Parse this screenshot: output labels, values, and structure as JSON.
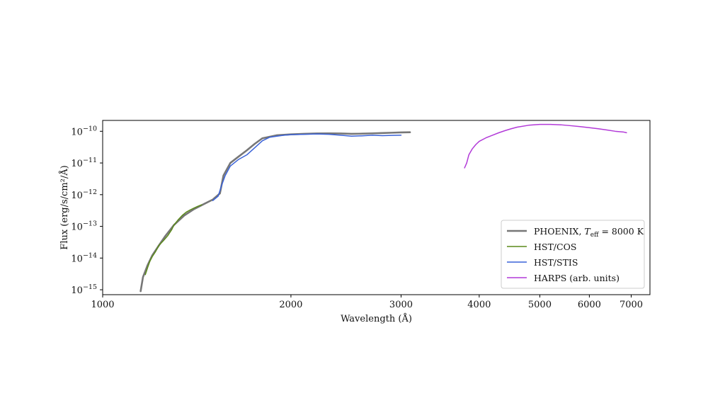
{
  "chart_data": {
    "type": "line",
    "title": "",
    "xlabel": "Wavelength (Å)",
    "ylabel": "Flux (erg/s/cm²/Å)",
    "xscale": "log",
    "yscale": "log",
    "xlim": [
      1000,
      7500
    ],
    "ylim": [
      7e-16,
      2.2e-10
    ],
    "grid": false,
    "legend_position": "lower-right",
    "x_ticks": [
      {
        "value": 1000,
        "label": "1000"
      },
      {
        "value": 2000,
        "label": "2000"
      },
      {
        "value": 3000,
        "label": "3000"
      },
      {
        "value": 4000,
        "label": "4000"
      },
      {
        "value": 5000,
        "label": "5000"
      },
      {
        "value": 6000,
        "label": "6000"
      },
      {
        "value": 7000,
        "label": "7000"
      }
    ],
    "y_ticks": [
      {
        "value": 1e-15,
        "mantissa": "10",
        "exponent": "−15"
      },
      {
        "value": 1e-14,
        "mantissa": "10",
        "exponent": "−14"
      },
      {
        "value": 1e-13,
        "mantissa": "10",
        "exponent": "−13"
      },
      {
        "value": 1e-12,
        "mantissa": "10",
        "exponent": "−12"
      },
      {
        "value": 1e-11,
        "mantissa": "10",
        "exponent": "−11"
      },
      {
        "value": 1e-10,
        "mantissa": "10",
        "exponent": "−10"
      }
    ],
    "series": [
      {
        "name": "PHOENIX, T_eff = 8000 K",
        "legend_parts": {
          "prefix": "PHOENIX, ",
          "var": "T",
          "sub": "eff",
          "suffix": " = 8000 K"
        },
        "color": "#777777",
        "x": [
          1150,
          1160,
          1180,
          1200,
          1230,
          1260,
          1300,
          1350,
          1400,
          1450,
          1500,
          1540,
          1560,
          1600,
          1650,
          1700,
          1750,
          1800,
          1900,
          2000,
          2100,
          2200,
          2300,
          2400,
          2500,
          2600,
          2700,
          2800,
          2900,
          3000,
          3100
        ],
        "y": [
          9e-16,
          2.5e-15,
          6e-15,
          1.2e-14,
          2.5e-14,
          5e-14,
          1.1e-13,
          2.2e-13,
          3.5e-13,
          5e-13,
          7e-13,
          1.1e-12,
          4e-12,
          1e-11,
          1.6e-11,
          2.5e-11,
          4e-11,
          6e-11,
          7.5e-11,
          8e-11,
          8.3e-11,
          8.5e-11,
          8.6e-11,
          8.5e-11,
          8.3e-11,
          8.4e-11,
          8.6e-11,
          8.8e-11,
          9e-11,
          9.2e-11,
          9.3e-11
        ]
      },
      {
        "name": "HST/COS",
        "color": "#5a8a1a",
        "x": [
          1170,
          1180,
          1190,
          1200,
          1215,
          1230,
          1250,
          1270,
          1290,
          1300,
          1320,
          1340,
          1360,
          1380,
          1400,
          1420,
          1440
        ],
        "y": [
          3e-15,
          5e-15,
          8e-15,
          1.1e-14,
          1.6e-14,
          2.5e-14,
          3.5e-14,
          5e-14,
          8e-14,
          1.1e-13,
          1.6e-13,
          2.2e-13,
          2.8e-13,
          3.3e-13,
          3.8e-13,
          4.3e-13,
          4.8e-13
        ]
      },
      {
        "name": "HST/STIS",
        "color": "#3a62d8",
        "x": [
          1500,
          1530,
          1550,
          1570,
          1600,
          1650,
          1700,
          1750,
          1800,
          1850,
          1900,
          1950,
          2000,
          2100,
          2200,
          2300,
          2400,
          2500,
          2600,
          2700,
          2800,
          2900,
          3000
        ],
        "y": [
          6.5e-13,
          9e-13,
          2e-12,
          4e-12,
          8e-12,
          1.3e-11,
          1.8e-11,
          3e-11,
          5e-11,
          6.5e-11,
          7e-11,
          7.5e-11,
          7.8e-11,
          8e-11,
          8.2e-11,
          8e-11,
          7.5e-11,
          7e-11,
          7.2e-11,
          7.5e-11,
          7.3e-11,
          7.4e-11,
          7.5e-11
        ]
      },
      {
        "name": "HARPS (arb. units)",
        "color": "#b23ad8",
        "x": [
          3790,
          3820,
          3850,
          3900,
          3950,
          4000,
          4100,
          4200,
          4300,
          4400,
          4500,
          4600,
          4800,
          5000,
          5200,
          5400,
          5600,
          5800,
          6000,
          6200,
          6400,
          6600,
          6800,
          6880
        ],
        "y": [
          7e-12,
          1e-11,
          1.8e-11,
          2.8e-11,
          3.8e-11,
          4.8e-11,
          6.2e-11,
          7.5e-11,
          9e-11,
          1.05e-10,
          1.2e-10,
          1.35e-10,
          1.55e-10,
          1.65e-10,
          1.65e-10,
          1.6e-10,
          1.5e-10,
          1.4e-10,
          1.3e-10,
          1.2e-10,
          1.1e-10,
          1e-10,
          9.5e-11,
          9e-11
        ]
      }
    ]
  }
}
